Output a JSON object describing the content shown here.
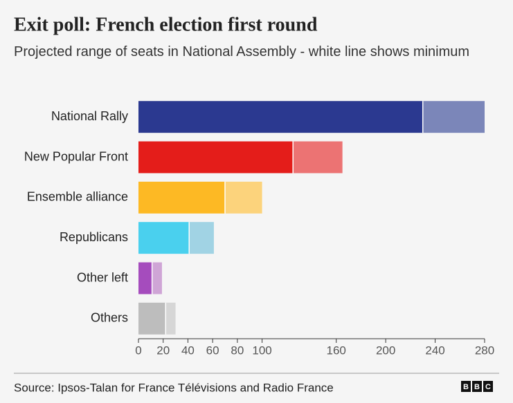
{
  "chart_data": {
    "type": "range-bar",
    "title": "Exit poll: French election first round",
    "subtitle": "Projected range of seats in National Assembly - white line shows minimum",
    "categories": [
      "National Rally",
      "New Popular Front",
      "Ensemble alliance",
      "Republicans",
      "Other left",
      "Others"
    ],
    "min": [
      230,
      125,
      70,
      41,
      11,
      22
    ],
    "max": [
      280,
      165,
      100,
      61,
      19,
      30
    ],
    "colors": [
      "#2b3990",
      "#e41d1a",
      "#fdb924",
      "#4ad0ee",
      "#a54cbd",
      "#bdbdbd"
    ],
    "range_colors": [
      "#7b86b9",
      "#ec7373",
      "#fcd37c",
      "#a1d3e4",
      "#cfa5d6",
      "#d6d6d6"
    ],
    "xlim": [
      0,
      280
    ],
    "xticks": [
      0,
      20,
      40,
      60,
      80,
      100,
      160,
      200,
      240,
      280
    ],
    "source": "Source: Ipsos-Talan for France Télévisions and Radio France",
    "logo": "BBC"
  }
}
